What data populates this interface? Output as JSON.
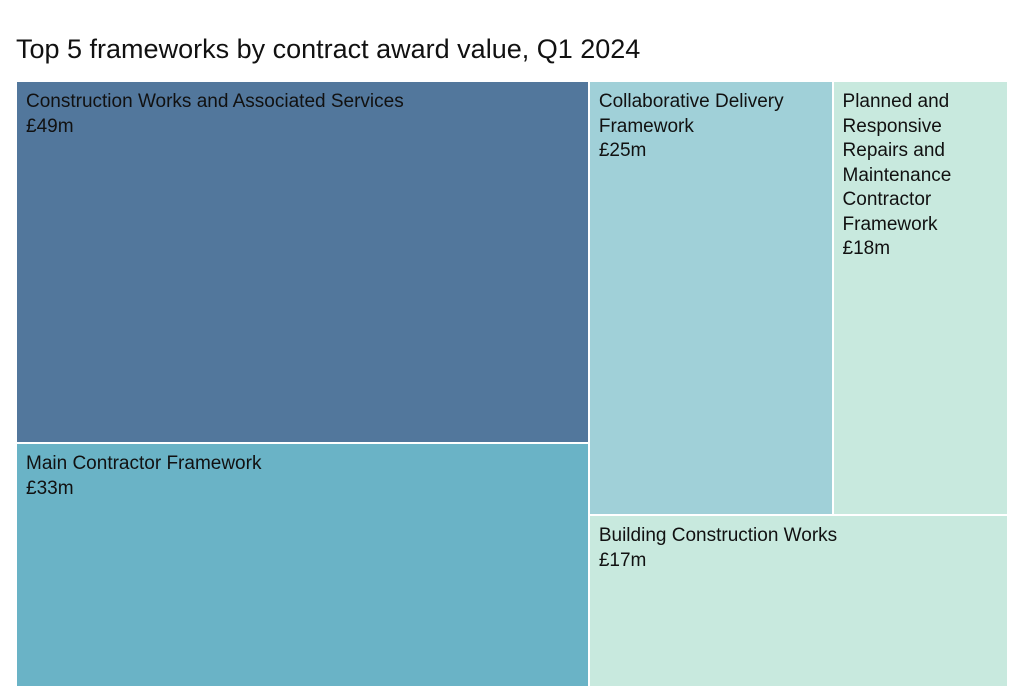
{
  "chart_data": {
    "type": "treemap",
    "title": "Top 5 frameworks by contract award value, Q1 2024",
    "unit": "£m",
    "items": [
      {
        "name": "Construction Works and Associated Services",
        "value": 49,
        "label": "£49m",
        "color": "#52779c"
      },
      {
        "name": "Main Contractor Framework",
        "value": 33,
        "label": "£33m",
        "color": "#6ab3c6"
      },
      {
        "name": "Collaborative Delivery Framework",
        "value": 25,
        "label": "£25m",
        "color": "#a0d0d8"
      },
      {
        "name": "Planned and Responsive Repairs and Maintenance Contractor Framework",
        "value": 18,
        "label": "£18m",
        "color": "#c8e9de"
      },
      {
        "name": "Building Construction Works",
        "value": 17,
        "label": "£17m",
        "color": "#c8e9de"
      }
    ]
  }
}
